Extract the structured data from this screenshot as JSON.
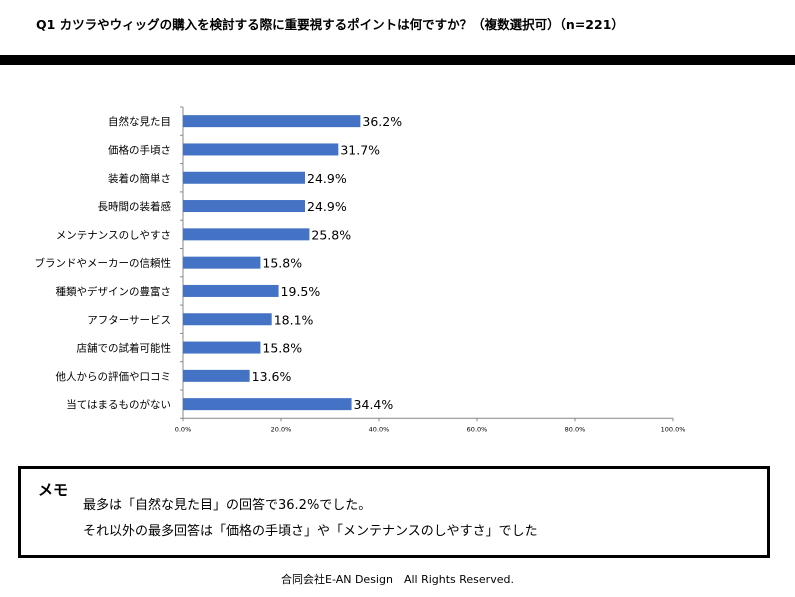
{
  "header": {
    "question": "Q1 カツラやウィッグの購入を検討する際に重要視するポイントは何ですか？（複数選択可）（n=221）"
  },
  "chart_data": {
    "type": "bar",
    "orientation": "horizontal",
    "categories": [
      "自然な見た目",
      "価格の手頃さ",
      "装着の簡単さ",
      "長時間の装着感",
      "メンテナンスのしやすさ",
      "ブランドやメーカーの信頼性",
      "種類やデザインの豊富さ",
      "アフターサービス",
      "店舗での試着可能性",
      "他人からの評価や口コミ",
      "当てはまるものがない"
    ],
    "values": [
      36.2,
      31.7,
      24.9,
      24.9,
      25.8,
      15.8,
      19.5,
      18.1,
      15.8,
      13.6,
      34.4
    ],
    "value_labels": [
      "36.2%",
      "31.7%",
      "24.9%",
      "24.9%",
      "25.8%",
      "15.8%",
      "19.5%",
      "18.1%",
      "15.8%",
      "13.6%",
      "34.4%"
    ],
    "xlim": [
      0,
      100
    ],
    "x_ticks": [
      "0.0%",
      "20.0%",
      "40.0%",
      "60.0%",
      "80.0%",
      "100.0%"
    ],
    "bar_color": "#4472c4",
    "grid": false
  },
  "memo": {
    "title": "メモ",
    "line1": "最多は「自然な見た目」の回答で36.2%でした。",
    "line2": "それ以外の最多回答は「価格の手頃さ」や「メンテナンスのしやすさ」でした"
  },
  "footer": {
    "text": "合同会社E-AN Design　All Rights Reserved."
  }
}
